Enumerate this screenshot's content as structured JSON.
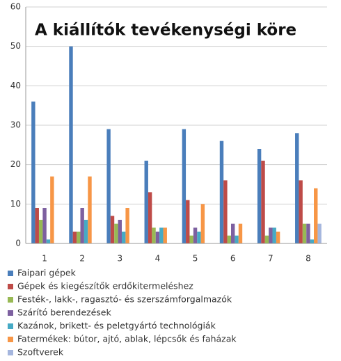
{
  "chart_data": {
    "type": "bar",
    "title": "A kiállítók tevékenységi köre",
    "categories": [
      "1",
      "2",
      "3",
      "4",
      "5",
      "6",
      "7",
      "8"
    ],
    "series": [
      {
        "name": "Faipari gépek",
        "color": "#4a7ebb",
        "values": [
          36,
          50,
          29,
          21,
          29,
          26,
          24,
          28
        ]
      },
      {
        "name": "Gépek és kiegészítők erdőkitermeléshez",
        "color": "#be4b48",
        "values": [
          9,
          3,
          7,
          13,
          11,
          16,
          21,
          16
        ]
      },
      {
        "name": "Festék-, lakk-, ragasztó- és szerszámforgalmazók",
        "color": "#98b954",
        "values": [
          6,
          3,
          5,
          4,
          2,
          2,
          2,
          5
        ]
      },
      {
        "name": "Szárító berendezések",
        "color": "#7d60a0",
        "values": [
          9,
          9,
          6,
          3,
          4,
          5,
          4,
          5
        ]
      },
      {
        "name": "Kazánok, brikett- és peletgyártó technológiák",
        "color": "#46aac5",
        "values": [
          1,
          6,
          3,
          4,
          3,
          2,
          4,
          1
        ]
      },
      {
        "name": "Fatermékek: bútor, ajtó, ablak, lépcsők és faházak",
        "color": "#f79646",
        "values": [
          17,
          17,
          9,
          4,
          10,
          5,
          3,
          14
        ]
      },
      {
        "name": "Szoftverek",
        "color": "#a5b6de",
        "values": [
          0,
          0,
          0,
          0,
          0,
          0,
          0,
          5
        ]
      }
    ],
    "ylim": [
      0,
      60
    ],
    "yticks": [
      0,
      10,
      20,
      30,
      40,
      50,
      60
    ],
    "grid": true
  }
}
